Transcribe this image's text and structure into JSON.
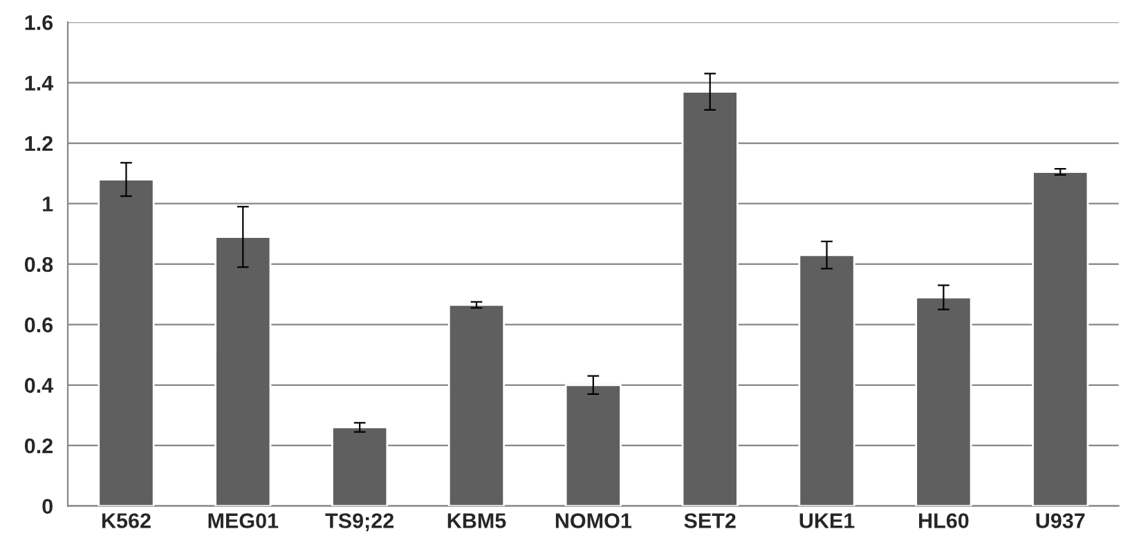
{
  "chart_data": {
    "type": "bar",
    "categories": [
      "K562",
      "MEG01",
      "TS9;22",
      "KBM5",
      "NOMO1",
      "SET2",
      "UKE1",
      "HL60",
      "U937"
    ],
    "values": [
      1.08,
      0.89,
      0.26,
      0.665,
      0.4,
      1.37,
      0.83,
      0.69,
      1.105
    ],
    "errors": [
      0.055,
      0.1,
      0.015,
      0.01,
      0.03,
      0.06,
      0.045,
      0.04,
      0.01
    ],
    "color": "#5f5f5f",
    "ylim": [
      0,
      1.6
    ],
    "yticks": [
      0,
      0.2,
      0.4,
      0.6,
      0.8,
      1,
      1.2,
      1.4,
      1.6
    ],
    "grid": "y"
  }
}
